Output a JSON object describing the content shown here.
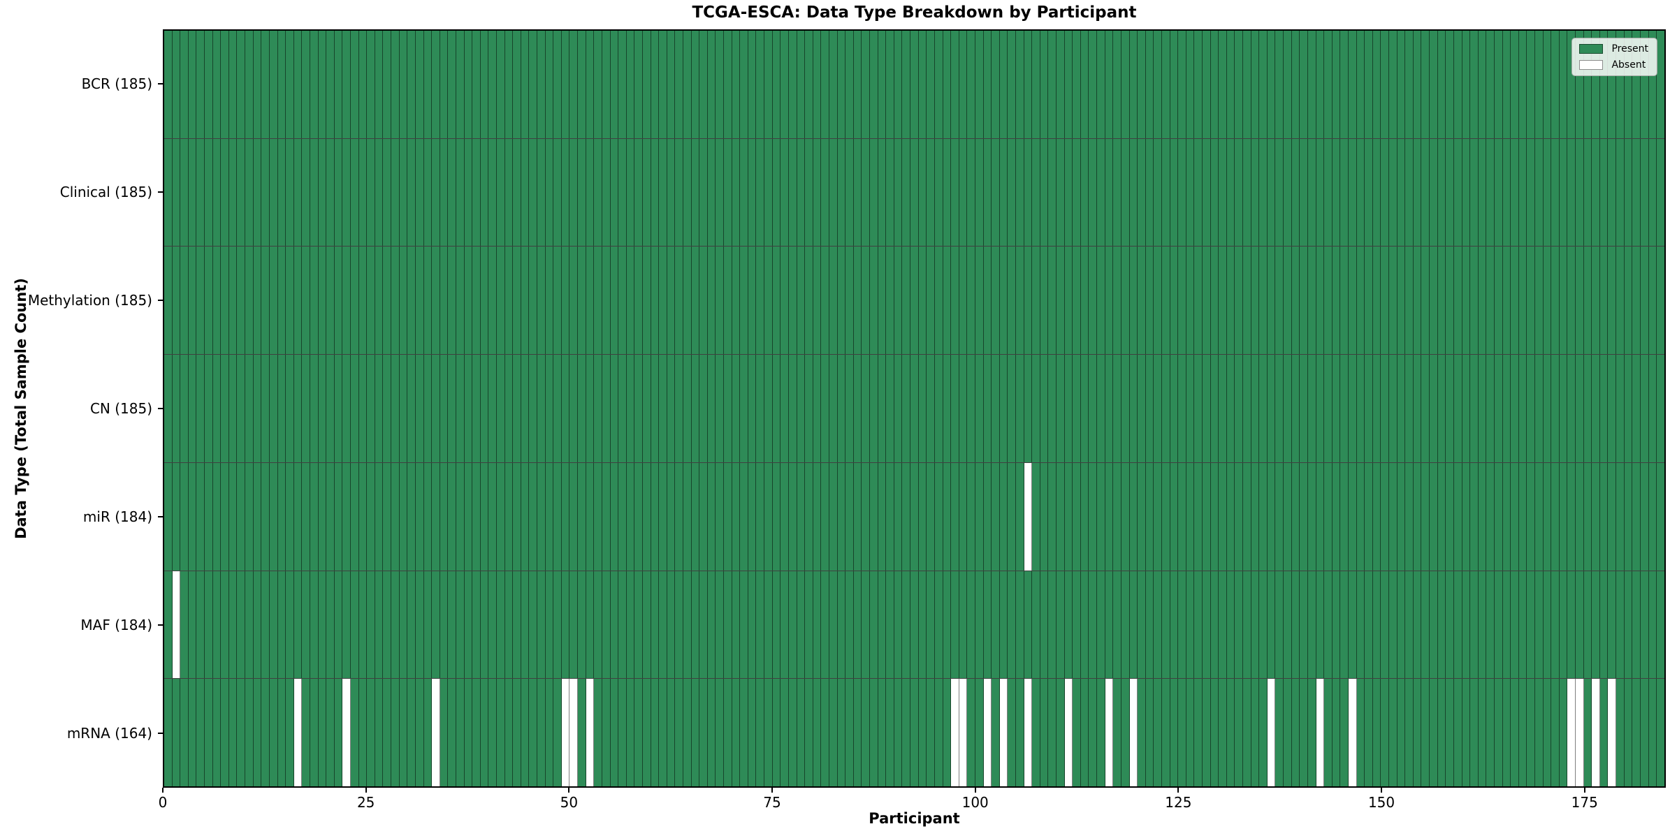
{
  "chart_data": {
    "type": "heatmap",
    "title": "TCGA-ESCA: Data Type Breakdown by Participant",
    "xlabel": "Participant",
    "ylabel": "Data Type (Total Sample Count)",
    "n_participants": 185,
    "x_ticks": [
      0,
      25,
      50,
      75,
      100,
      125,
      150,
      175
    ],
    "grid": "cell-edges",
    "legend_position": "upper right",
    "colors": {
      "present": "#2e8b57",
      "absent": "#ffffff"
    },
    "legend": [
      {
        "label": "Present",
        "color": "#2e8b57"
      },
      {
        "label": "Absent",
        "color": "#ffffff"
      }
    ],
    "rows": [
      {
        "name": "BCR",
        "label": "BCR (185)",
        "count": 185,
        "absent": []
      },
      {
        "name": "Clinical",
        "label": "Clinical (185)",
        "count": 185,
        "absent": []
      },
      {
        "name": "Methylation",
        "label": "Methylation (185)",
        "count": 185,
        "absent": []
      },
      {
        "name": "CN",
        "label": "CN (185)",
        "count": 185,
        "absent": []
      },
      {
        "name": "miR",
        "label": "miR (184)",
        "count": 184,
        "absent": [
          106
        ]
      },
      {
        "name": "MAF",
        "label": "MAF (184)",
        "count": 184,
        "absent": [
          1
        ]
      },
      {
        "name": "mRNA",
        "label": "mRNA (164)",
        "count": 164,
        "absent": [
          16,
          22,
          33,
          49,
          50,
          52,
          97,
          98,
          101,
          103,
          106,
          111,
          116,
          119,
          136,
          142,
          146,
          173,
          174,
          176,
          178
        ]
      }
    ]
  }
}
